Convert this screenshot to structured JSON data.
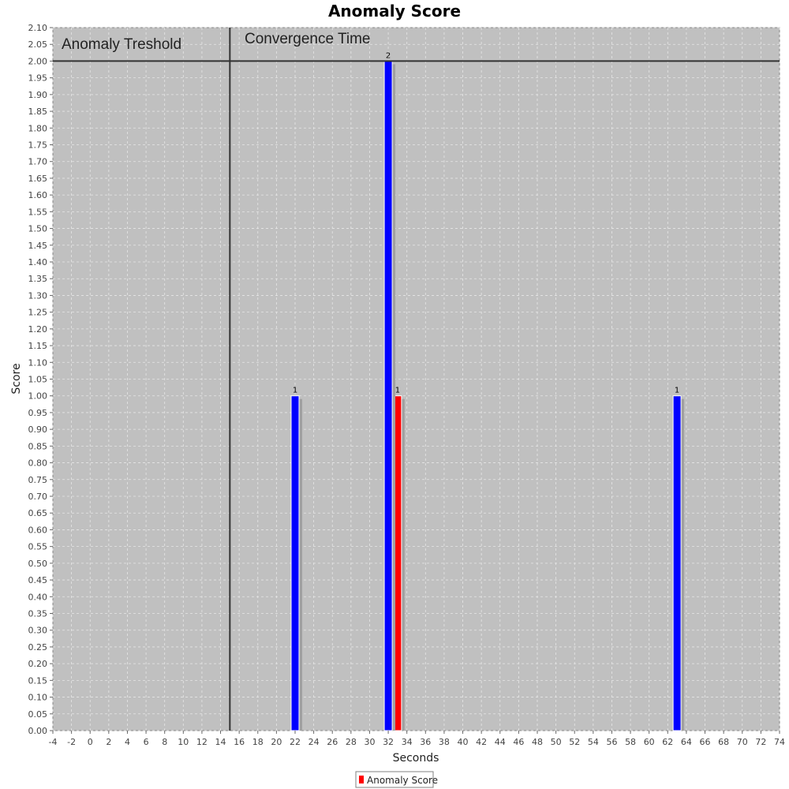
{
  "chart_data": {
    "type": "bar",
    "title": "Anomaly Score",
    "xlabel": "Seconds",
    "ylabel": "Score",
    "xlim": [
      -4,
      74
    ],
    "ylim": [
      0,
      2.1
    ],
    "x_tick_step": 2,
    "y_tick_step": 0.05,
    "grid": true,
    "legend_position": "bottom-center",
    "colors": {
      "plot_background": "#c0c0c0",
      "grid": "#e6e6e6",
      "marker_line": "#333333",
      "bar_blue": "#0000ff",
      "bar_red": "#ff0000",
      "shadow": "#a0a0a0"
    },
    "series": [
      {
        "name": "Anomaly Score",
        "color": "#ff0000",
        "points": [
          {
            "x": 33,
            "y": 1,
            "label": "1"
          }
        ]
      },
      {
        "color": "#0000ff",
        "points": [
          {
            "x": 22,
            "y": 1,
            "label": "1"
          },
          {
            "x": 32,
            "y": 2,
            "label": "2"
          },
          {
            "x": 63,
            "y": 1,
            "label": "1"
          }
        ]
      }
    ],
    "markers": {
      "threshold": {
        "label": "Anomaly Treshold",
        "y": 2
      },
      "convergence": {
        "label": "Convergence Time",
        "x": 15
      }
    }
  }
}
